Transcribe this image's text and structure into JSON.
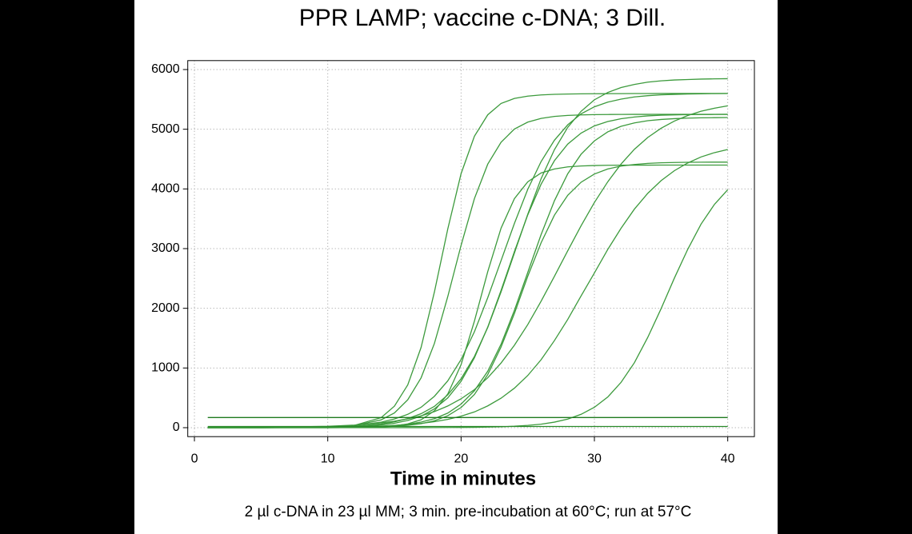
{
  "chart_data": {
    "type": "line",
    "title": "PPR LAMP; vaccine c-DNA; 3 Dill.",
    "xlabel": "Time in minutes",
    "note": "2 µl c-DNA in 23 µl MM; 3 min. pre-incubation at 60°C; run at 57°C",
    "xlim": [
      -0.5,
      42
    ],
    "ylim": [
      -150,
      6150
    ],
    "xticks": [
      0,
      10,
      20,
      30,
      40
    ],
    "yticks": [
      0,
      1000,
      2000,
      3000,
      4000,
      5000,
      6000
    ],
    "grid": true,
    "x": [
      1,
      5,
      10,
      12,
      14,
      15,
      16,
      17,
      18,
      19,
      20,
      21,
      22,
      23,
      24,
      25,
      26,
      27,
      28,
      29,
      30,
      31,
      32,
      33,
      34,
      35,
      36,
      37,
      38,
      39,
      40
    ],
    "series": [
      {
        "color": "#3c9a3c",
        "values": [
          0,
          0,
          8,
          38,
          168,
          360,
          717,
          1344,
          2274,
          3326,
          4256,
          4883,
          5242,
          5432,
          5516,
          5555,
          5575,
          5585,
          5590,
          5593,
          5595,
          5596,
          5597,
          5598,
          5598,
          5599,
          5599,
          5600,
          5600,
          5600,
          5600
        ]
      },
      {
        "color": "#3c9a3c",
        "values": [
          0,
          0,
          9,
          35,
          131,
          247,
          467,
          835,
          1412,
          2195,
          3055,
          3838,
          4415,
          4783,
          5003,
          5119,
          5182,
          5215,
          5232,
          5240,
          5245,
          5247,
          5248,
          5249,
          5249,
          5250,
          5250,
          5250,
          5250,
          5250,
          5250
        ]
      },
      {
        "color": "#3c9a3c",
        "values": [
          0,
          0,
          0,
          3,
          14,
          29,
          63,
          132,
          282,
          563,
          1056,
          1786,
          2614,
          3344,
          3837,
          4118,
          4268,
          4334,
          4369,
          4385,
          4392,
          4396,
          4398,
          4399,
          4399,
          4400,
          4400,
          4400,
          4400,
          4400,
          4400
        ]
      },
      {
        "color": "#3c9a3c",
        "values": [
          0,
          1,
          10,
          25,
          61,
          97,
          152,
          234,
          357,
          550,
          819,
          1193,
          1679,
          2276,
          2925,
          3574,
          4171,
          4657,
          5031,
          5300,
          5493,
          5616,
          5698,
          5751,
          5789,
          5811,
          5825,
          5833,
          5840,
          5844,
          5847
        ]
      },
      {
        "color": "#3c9a3c",
        "values": [
          0,
          0,
          6,
          17,
          45,
          74,
          121,
          194,
          315,
          499,
          777,
          1171,
          1685,
          2300,
          2950,
          3565,
          4079,
          4473,
          4751,
          4935,
          5056,
          5129,
          5176,
          5205,
          5224,
          5235,
          5241,
          5245,
          5247,
          5248,
          5249
        ]
      },
      {
        "color": "#3c9a3c",
        "values": [
          0,
          1,
          15,
          38,
          92,
          146,
          224,
          342,
          526,
          784,
          1142,
          1607,
          2178,
          2800,
          3422,
          3993,
          4458,
          4816,
          5074,
          5258,
          5376,
          5454,
          5505,
          5541,
          5562,
          5576,
          5584,
          5590,
          5594,
          5597,
          5598
        ]
      },
      {
        "color": "#3c9a3c",
        "values": [
          0,
          0,
          3,
          8,
          21,
          35,
          57,
          94,
          151,
          244,
          395,
          619,
          946,
          1399,
          1966,
          2600,
          3234,
          3801,
          4254,
          4581,
          4805,
          4956,
          5049,
          5106,
          5143,
          5164,
          5177,
          5186,
          5191,
          5194,
          5196
        ]
      },
      {
        "color": "#3c9a3c",
        "values": [
          0,
          0,
          0,
          4,
          13,
          23,
          40,
          67,
          116,
          200,
          338,
          556,
          890,
          1353,
          1914,
          2536,
          3097,
          3560,
          3894,
          4112,
          4250,
          4334,
          4383,
          4410,
          4428,
          4438,
          4443,
          4446,
          4448,
          4449,
          4449
        ]
      },
      {
        "color": "#3c9a3c",
        "values": [
          0,
          5,
          23,
          43,
          80,
          108,
          149,
          198,
          270,
          363,
          484,
          638,
          836,
          1084,
          1381,
          1727,
          2118,
          2536,
          2964,
          3382,
          3773,
          4119,
          4417,
          4664,
          4862,
          5016,
          5137,
          5230,
          5302,
          5352,
          5392
        ]
      },
      {
        "color": "#3c9a3c",
        "values": [
          0,
          1,
          7,
          14,
          27,
          38,
          53,
          72,
          101,
          139,
          192,
          264,
          365,
          494,
          662,
          874,
          1138,
          1459,
          1814,
          2208,
          2592,
          2986,
          3341,
          3662,
          3926,
          4138,
          4306,
          4435,
          4536,
          4608,
          4661
        ]
      },
      {
        "color": "#3c9a3c",
        "values": [
          0,
          0,
          0,
          0,
          0,
          0,
          1,
          1,
          2,
          3,
          4,
          6,
          10,
          15,
          24,
          38,
          59,
          93,
          144,
          224,
          342,
          513,
          760,
          1089,
          1512,
          1993,
          2507,
          2988,
          3411,
          3740,
          3987
        ]
      },
      {
        "color": "#1e7a1e",
        "values": [
          170,
          170,
          170,
          170,
          170,
          170,
          170,
          170,
          170,
          170,
          170,
          170,
          170,
          170,
          170,
          170,
          170,
          170,
          170,
          170,
          170,
          170,
          170,
          170,
          170,
          170,
          170,
          170,
          170,
          170,
          170
        ]
      },
      {
        "color": "#2a8a2a",
        "values": [
          20,
          20,
          20,
          20,
          20,
          20,
          20,
          20,
          20,
          20,
          20,
          20,
          20,
          20,
          20,
          20,
          20,
          20,
          20,
          20,
          20,
          20,
          20,
          20,
          20,
          20,
          20,
          20,
          20,
          20,
          20
        ]
      }
    ]
  }
}
